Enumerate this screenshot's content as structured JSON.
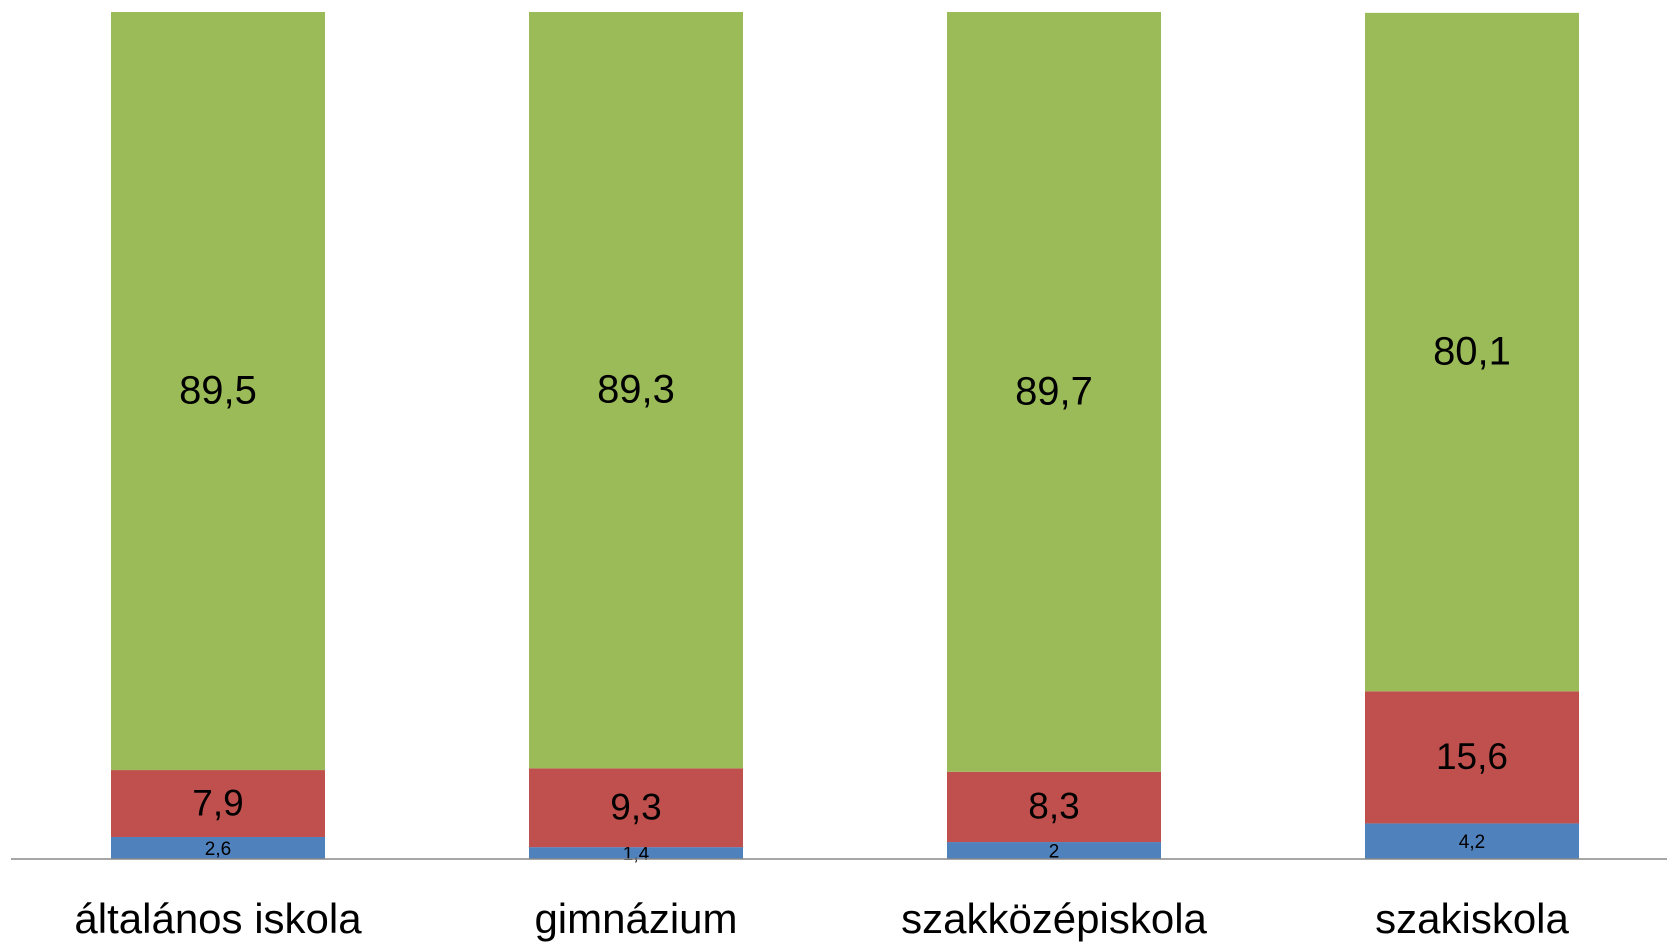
{
  "chart_data": {
    "type": "stacked_bar",
    "categories": [
      "általános iskola",
      "gimnázium",
      "szakközépiskola",
      "szakiskola"
    ],
    "series": [
      {
        "color": "#4f81bd",
        "values": [
          2.6,
          1.4,
          2,
          4.2
        ],
        "value_labels": [
          "2,6",
          "1,4",
          "2",
          "4,2"
        ]
      },
      {
        "color": "#c0504d",
        "values": [
          7.9,
          9.3,
          8.3,
          15.6
        ],
        "value_labels": [
          "7,9",
          "9,3",
          "8,3",
          "15,6"
        ]
      },
      {
        "color": "#9bbb59",
        "values": [
          89.5,
          89.3,
          89.7,
          80.1
        ],
        "value_labels": [
          "89,5",
          "89,3",
          "89,7",
          "80,1"
        ]
      }
    ],
    "ylim": [
      0,
      100
    ]
  }
}
